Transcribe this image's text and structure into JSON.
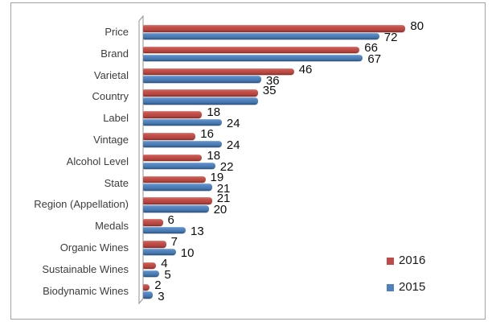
{
  "chart_data": {
    "type": "bar",
    "orientation": "horizontal",
    "title": "",
    "xlabel": "",
    "ylabel": "",
    "xlim": [
      0,
      104
    ],
    "grid": false,
    "value_label_placement": "outside-end",
    "legend_position": "right-middle",
    "categories": [
      "Price",
      "Brand",
      "Varietal",
      "Country",
      "Label",
      "Vintage",
      "Alcohol Level",
      "State",
      "Region (Appellation)",
      "Medals",
      "Organic Wines",
      "Sustainable Wines",
      "Biodynamic Wines"
    ],
    "series": [
      {
        "name": "2016",
        "color": "#BE4B47",
        "values": [
          80,
          66,
          46,
          35,
          18,
          16,
          18,
          19,
          21,
          6,
          7,
          4,
          2
        ],
        "labels": [
          "80",
          "66",
          "46",
          "35",
          "18",
          "16",
          "18",
          "19",
          "21",
          "6",
          "7",
          "4",
          "2"
        ]
      },
      {
        "name": "2015",
        "color": "#4F81BD",
        "values": [
          72,
          67,
          36,
          35,
          24,
          24,
          22,
          21,
          20,
          13,
          10,
          5,
          3
        ],
        "labels": [
          "72",
          "67",
          "36",
          "",
          "24",
          "24",
          "22",
          "21",
          "20",
          "13",
          "10",
          "5",
          "3"
        ]
      }
    ]
  },
  "legend": {
    "items": [
      {
        "label": "2016",
        "swatch_color": "#BE4B47"
      },
      {
        "label": "2015",
        "swatch_color": "#4F81BD"
      }
    ]
  },
  "frame": {
    "border_color": "#a3a3a3",
    "background": "#ffffff"
  }
}
